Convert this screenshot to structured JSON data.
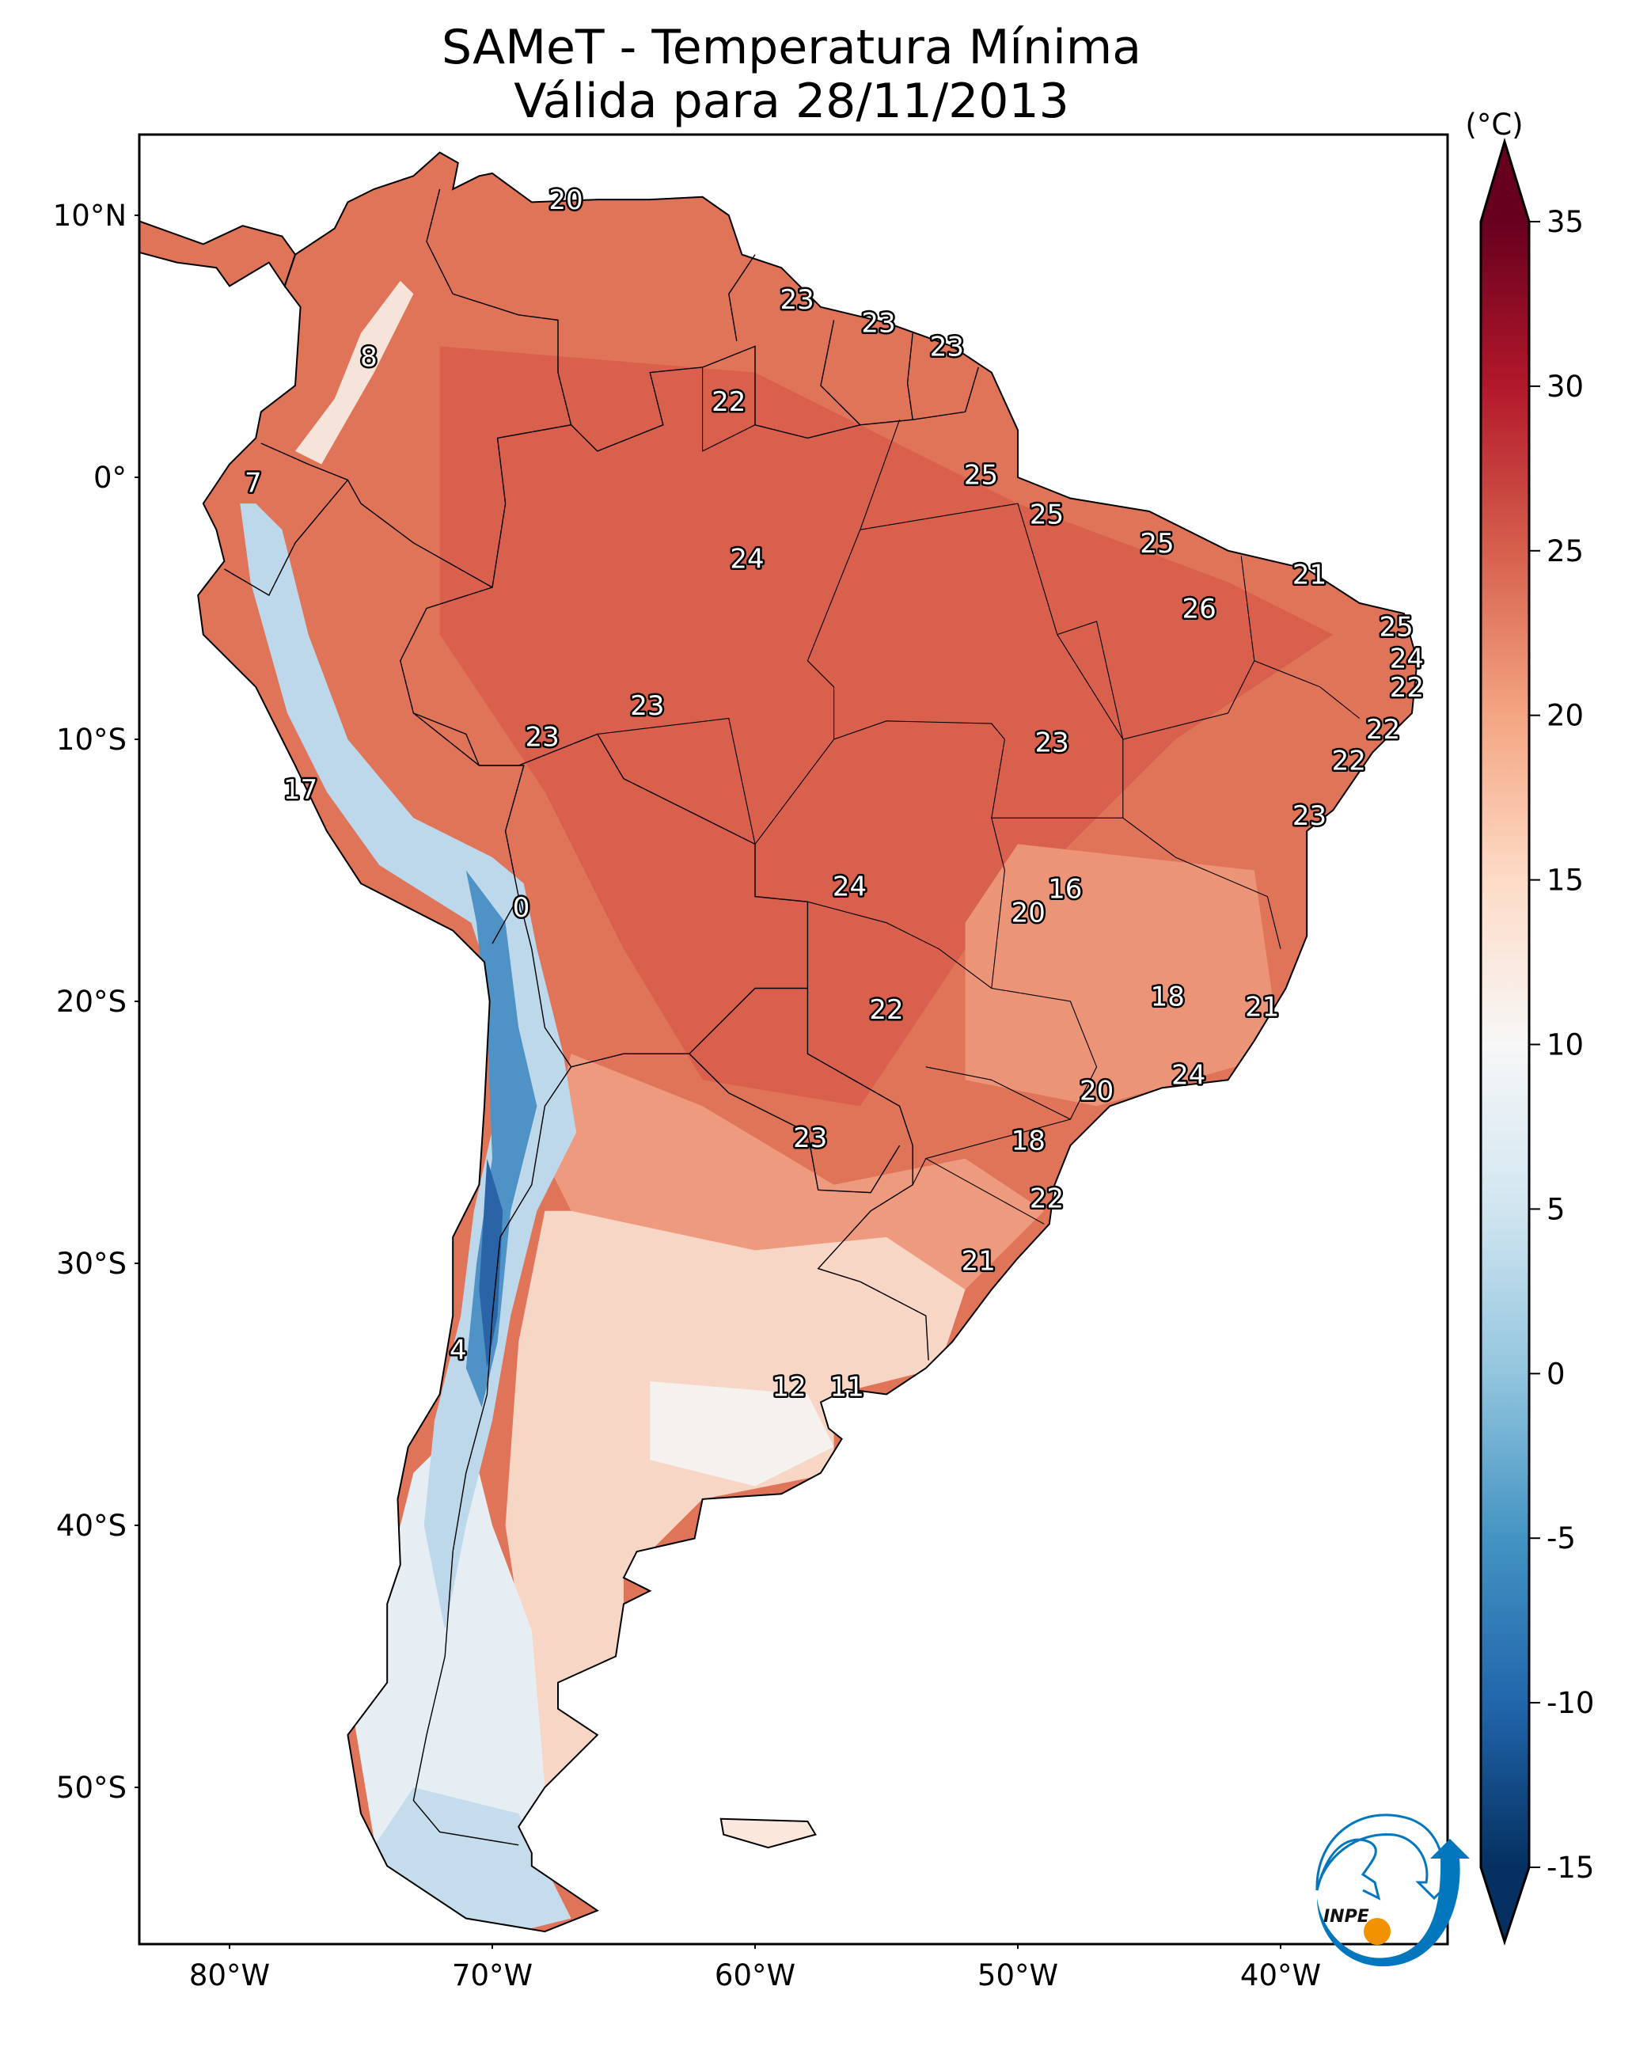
{
  "chart_data": {
    "type": "heatmap",
    "title_line1": "SAMeT - Temperatura Mínima",
    "title_line2": "Válida para 28/11/2013",
    "colorbar": {
      "unit_label": "(°C)",
      "range": [
        -15,
        35
      ],
      "ticks": [
        35,
        30,
        25,
        20,
        15,
        10,
        5,
        0,
        -5,
        -10,
        -15
      ],
      "tick_labels": [
        "35",
        "30",
        "25",
        "20",
        "15",
        "10",
        "5",
        "0",
        "-5",
        "-10",
        "-15"
      ],
      "colormap": "RdBu_r",
      "extend": "both"
    },
    "lon_range": [
      -83.4,
      -33.6
    ],
    "lat_range": [
      -56,
      13.1
    ],
    "lat_ticks": [
      {
        "value": 10,
        "label": "10°N"
      },
      {
        "value": 0,
        "label": "0°"
      },
      {
        "value": -10,
        "label": "10°S"
      },
      {
        "value": -20,
        "label": "20°S"
      },
      {
        "value": -30,
        "label": "30°S"
      },
      {
        "value": -40,
        "label": "40°S"
      },
      {
        "value": -50,
        "label": "50°S"
      }
    ],
    "lon_ticks": [
      {
        "value": -80,
        "label": "80°W"
      },
      {
        "value": -70,
        "label": "70°W"
      },
      {
        "value": -60,
        "label": "60°W"
      },
      {
        "value": -50,
        "label": "50°W"
      },
      {
        "value": -40,
        "label": "40°W"
      }
    ],
    "station_labels": [
      {
        "lon": -67.2,
        "lat": 10.6,
        "value": "20"
      },
      {
        "lon": -58.4,
        "lat": 6.8,
        "value": "23"
      },
      {
        "lon": -55.3,
        "lat": 5.9,
        "value": "23"
      },
      {
        "lon": -52.7,
        "lat": 5.0,
        "value": "23"
      },
      {
        "lon": -74.7,
        "lat": 4.6,
        "value": "8"
      },
      {
        "lon": -61.0,
        "lat": 2.9,
        "value": "22"
      },
      {
        "lon": -79.1,
        "lat": -0.2,
        "value": "7"
      },
      {
        "lon": -51.4,
        "lat": 0.1,
        "value": "25"
      },
      {
        "lon": -48.9,
        "lat": -1.4,
        "value": "25"
      },
      {
        "lon": -60.3,
        "lat": -3.1,
        "value": "24"
      },
      {
        "lon": -44.7,
        "lat": -2.5,
        "value": "25"
      },
      {
        "lon": -38.9,
        "lat": -3.7,
        "value": "21"
      },
      {
        "lon": -43.1,
        "lat": -5.0,
        "value": "26"
      },
      {
        "lon": -35.6,
        "lat": -5.7,
        "value": "25"
      },
      {
        "lon": -35.2,
        "lat": -6.9,
        "value": "24"
      },
      {
        "lon": -35.2,
        "lat": -8.0,
        "value": "22"
      },
      {
        "lon": -64.1,
        "lat": -8.7,
        "value": "23"
      },
      {
        "lon": -36.1,
        "lat": -9.6,
        "value": "22"
      },
      {
        "lon": -68.1,
        "lat": -9.9,
        "value": "23"
      },
      {
        "lon": -48.7,
        "lat": -10.1,
        "value": "23"
      },
      {
        "lon": -37.4,
        "lat": -10.8,
        "value": "22"
      },
      {
        "lon": -77.3,
        "lat": -11.9,
        "value": "17"
      },
      {
        "lon": -38.9,
        "lat": -12.9,
        "value": "23"
      },
      {
        "lon": -56.4,
        "lat": -15.6,
        "value": "24"
      },
      {
        "lon": -48.2,
        "lat": -15.7,
        "value": "16"
      },
      {
        "lon": -68.9,
        "lat": -16.4,
        "value": "0"
      },
      {
        "lon": -49.6,
        "lat": -16.6,
        "value": "20"
      },
      {
        "lon": -44.3,
        "lat": -19.8,
        "value": "18"
      },
      {
        "lon": -40.7,
        "lat": -20.2,
        "value": "21"
      },
      {
        "lon": -55.0,
        "lat": -20.3,
        "value": "22"
      },
      {
        "lon": -43.5,
        "lat": -22.8,
        "value": "24"
      },
      {
        "lon": -47.0,
        "lat": -23.4,
        "value": "20"
      },
      {
        "lon": -57.9,
        "lat": -25.2,
        "value": "23"
      },
      {
        "lon": -49.6,
        "lat": -25.3,
        "value": "18"
      },
      {
        "lon": -48.9,
        "lat": -27.5,
        "value": "22"
      },
      {
        "lon": -51.5,
        "lat": -29.9,
        "value": "21"
      },
      {
        "lon": -71.3,
        "lat": -33.3,
        "value": "4"
      },
      {
        "lon": -58.7,
        "lat": -34.7,
        "value": "12"
      },
      {
        "lon": -56.5,
        "lat": -34.7,
        "value": "11"
      }
    ]
  },
  "logo": {
    "text": "INPE",
    "blue": "#0277bd",
    "orange": "#f39200"
  }
}
